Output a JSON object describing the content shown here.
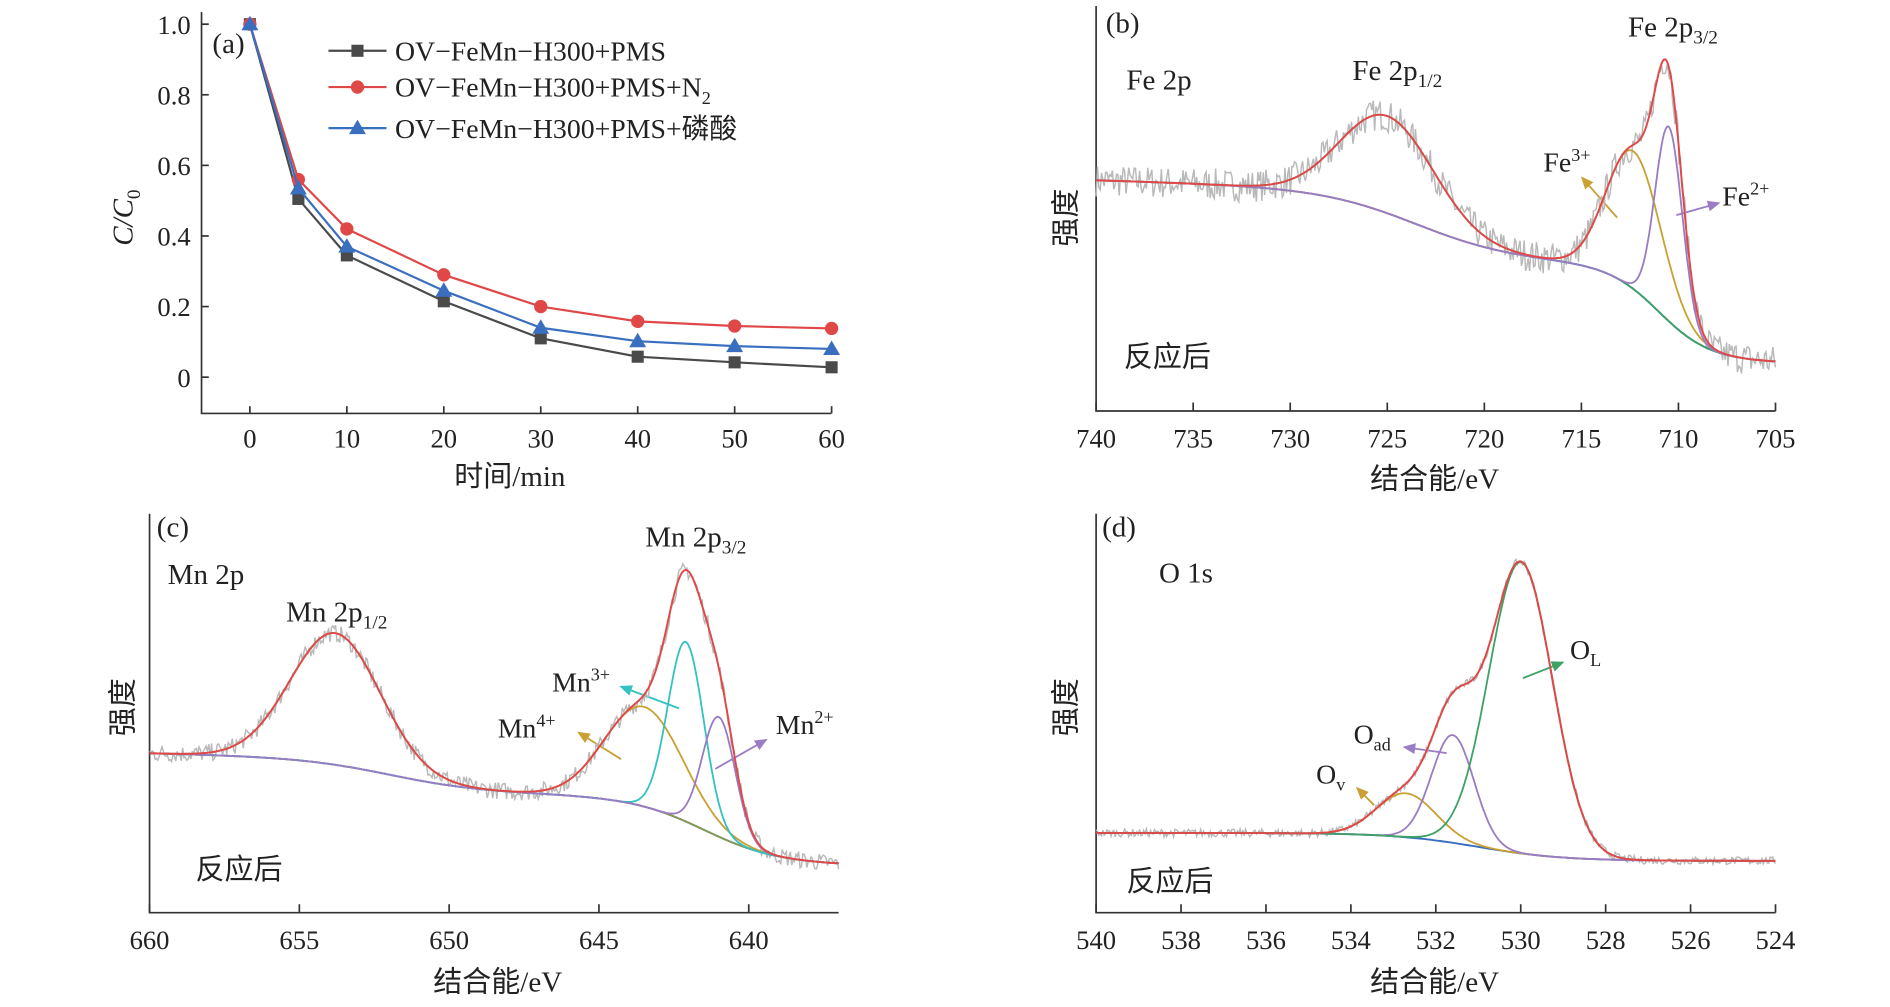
{
  "chart_data": [
    {
      "panel": "(a)",
      "type": "line",
      "xlabel": "时间/min",
      "ylabel": {
        "main": "C/C",
        "sub": "0"
      },
      "xlim": [
        -5,
        60
      ],
      "ylim": [
        -0.1,
        1.0
      ],
      "xticks": [
        "0",
        "10",
        "20",
        "30",
        "40",
        "50",
        "60"
      ],
      "yticks": [
        "0",
        "0.2",
        "0.4",
        "0.6",
        "0.8",
        "1.0"
      ],
      "legend_position": "top-right",
      "x": [
        0,
        5,
        10,
        20,
        30,
        40,
        50,
        60
      ],
      "series": [
        {
          "name": "OV−FeMn−H300+PMS",
          "name_sub": "",
          "marker": "square",
          "color": "#4a4a4a",
          "values": [
            1.0,
            0.505,
            0.345,
            0.215,
            0.11,
            0.058,
            0.042,
            0.028
          ]
        },
        {
          "name": "OV−FeMn−H300+PMS+N",
          "name_sub": "2",
          "marker": "circle",
          "color": "#e04848",
          "values": [
            1.0,
            0.56,
            0.42,
            0.29,
            0.2,
            0.158,
            0.145,
            0.138
          ]
        },
        {
          "name": "OV−FeMn−H300+PMS+磷酸",
          "name_sub": "",
          "marker": "triangle",
          "color": "#3a6fc0",
          "values": [
            1.0,
            0.535,
            0.37,
            0.245,
            0.14,
            0.102,
            0.088,
            0.08
          ]
        }
      ]
    },
    {
      "panel": "(b)",
      "type": "line",
      "xlabel": "结合能/eV",
      "ylabel": "强度",
      "xlim": [
        740,
        705
      ],
      "xticks": [
        "740",
        "735",
        "730",
        "725",
        "720",
        "715",
        "710",
        "705"
      ],
      "title": "Fe 2p",
      "note": "反应后",
      "peak_labels": [
        {
          "main": "Fe 2p",
          "sub": "1/2",
          "center_eV": 725.0
        },
        {
          "main": "Fe 2p",
          "sub": "3/2",
          "center_eV": 710.5
        }
      ],
      "components": [
        {
          "main": "Fe",
          "sup": "3+",
          "center_eV": 712.3,
          "color": "#c9a032"
        },
        {
          "main": "Fe",
          "sup": "2+",
          "center_eV": 710.5,
          "color": "#9a7cc4"
        }
      ],
      "colors": {
        "raw": "#b9b9b9",
        "envelope": "#e04848",
        "background": "#3a6fc0",
        "doublet": "#3ea266"
      }
    },
    {
      "panel": "(c)",
      "type": "line",
      "xlabel": "结合能/eV",
      "ylabel": "强度",
      "xlim": [
        660,
        637
      ],
      "xticks": [
        "660",
        "655",
        "650",
        "645",
        "640"
      ],
      "title": "Mn 2p",
      "note": "反应后",
      "peak_labels": [
        {
          "main": "Mn 2p",
          "sub": "1/2",
          "center_eV": 653.8
        },
        {
          "main": "Mn 2p",
          "sub": "3/2",
          "center_eV": 642.1
        }
      ],
      "components": [
        {
          "main": "Mn",
          "sup": "4+",
          "center_eV": 643.5,
          "color": "#c9a032"
        },
        {
          "main": "Mn",
          "sup": "3+",
          "center_eV": 642.1,
          "color": "#33c2c2"
        },
        {
          "main": "Mn",
          "sup": "2+",
          "center_eV": 641.0,
          "color": "#9a7cc4"
        }
      ],
      "colors": {
        "raw": "#b9b9b9",
        "envelope": "#e04848",
        "background": "#3a6fc0",
        "doublet": "#8a9a50"
      }
    },
    {
      "panel": "(d)",
      "type": "line",
      "xlabel": "结合能/eV",
      "ylabel": "强度",
      "xlim": [
        540,
        524
      ],
      "xticks": [
        "540",
        "538",
        "536",
        "534",
        "532",
        "530",
        "528",
        "526",
        "524"
      ],
      "title": "O 1s",
      "note": "反应后",
      "components": [
        {
          "main": "O",
          "sub": "v",
          "center_eV": 532.7,
          "color": "#c9a032"
        },
        {
          "main": "O",
          "sub": "ad",
          "center_eV": 531.6,
          "color": "#9a7cc4"
        },
        {
          "main": "O",
          "sub": "L",
          "center_eV": 530.0,
          "color": "#3ea266"
        }
      ],
      "colors": {
        "raw": "#b9b9b9",
        "envelope": "#e04848",
        "background": "#3a6fc0"
      }
    }
  ]
}
